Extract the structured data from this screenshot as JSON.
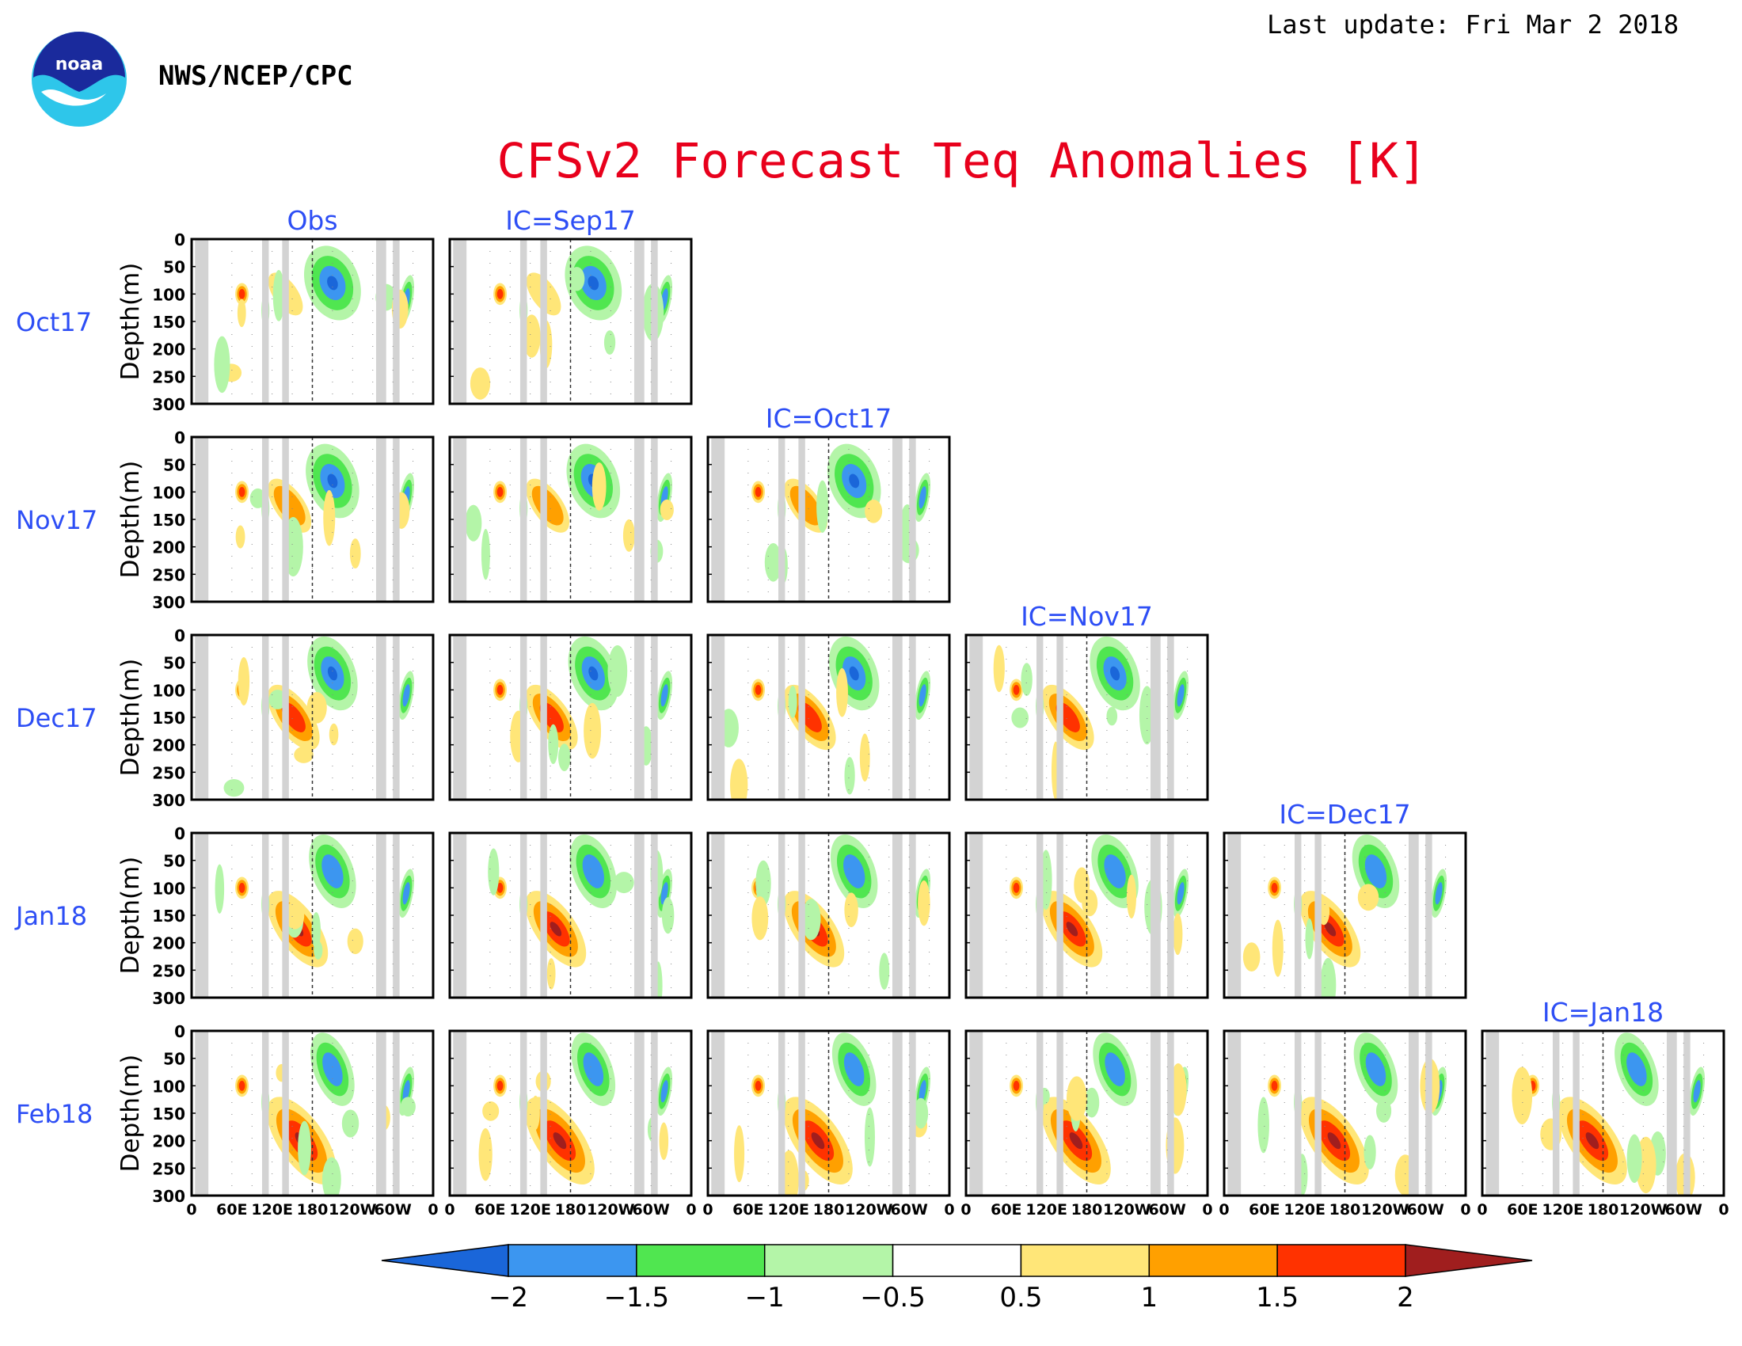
{
  "header": {
    "last_update": "Last update: Fri Mar  2 2018",
    "organization": "NWS/NCEP/CPC",
    "title": "CFSv2 Forecast Teq Anomalies [K]",
    "logo_text": "noaa"
  },
  "chart_data": {
    "type": "heatmap",
    "title": "CFSv2 Forecast Teq Anomalies [K]",
    "ylabel": "Depth(m)",
    "yticks": [
      "0",
      "50",
      "100",
      "150",
      "200",
      "250",
      "300"
    ],
    "ylim": [
      0,
      300
    ],
    "xticks": [
      "0",
      "60E",
      "120E",
      "180",
      "120W",
      "60W",
      "0"
    ],
    "xlim": [
      0,
      360
    ],
    "rows": [
      "Oct17",
      "Nov17",
      "Dec17",
      "Jan18",
      "Feb18"
    ],
    "columns": [
      "Obs",
      "IC=Sep17",
      "IC=Oct17",
      "IC=Nov17",
      "IC=Dec17",
      "IC=Jan18"
    ],
    "colorbar": {
      "levels": [
        "−2",
        "−1.5",
        "−1",
        "−0.5",
        "0.5",
        "1",
        "1.5",
        "2"
      ],
      "colors": [
        "#1a66d9",
        "#3c96f0",
        "#50e650",
        "#b4f5a8",
        "#ffffff",
        "#ffe678",
        "#ffa000",
        "#ff3200",
        "#a01e1e"
      ]
    },
    "land_color": "#d3d3d3",
    "gray_bands_lon": [
      [
        5,
        25
      ],
      [
        105,
        115
      ],
      [
        135,
        145
      ],
      [
        275,
        290
      ],
      [
        300,
        310
      ]
    ]
  }
}
